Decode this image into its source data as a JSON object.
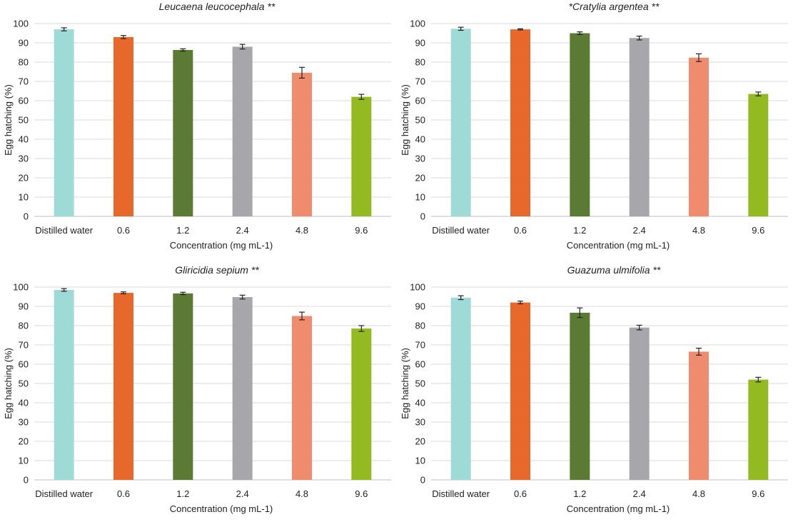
{
  "colors": {
    "Distilled water": "#9fdbd6",
    "0.6": "#e8672a",
    "1.2": "#5b7a33",
    "2.4": "#a7a7ab",
    "4.8": "#f08c6e",
    "9.6": "#93bb21"
  },
  "chart_data": [
    {
      "type": "bar",
      "title": "Leucaena leucocephala **",
      "xlabel": "Concentration (mg mL-1)",
      "ylabel": "Egg hatching (%)",
      "ylim": [
        0,
        100
      ],
      "yticks": [
        0,
        10,
        20,
        30,
        40,
        50,
        60,
        70,
        80,
        90,
        100
      ],
      "grid": true,
      "categories": [
        "Distilled water",
        "0.6",
        "1.2",
        "2.4",
        "4.8",
        "9.6"
      ],
      "values": [
        97,
        93,
        86.3,
        88,
        74.5,
        62
      ],
      "errors": [
        0.8,
        0.8,
        0.6,
        1.2,
        2.8,
        1.3
      ]
    },
    {
      "type": "bar",
      "title": "*Cratylia argentea **",
      "xlabel": "Concentration (mg mL-1)",
      "ylabel": "Egg hatching (%)",
      "ylim": [
        0,
        100
      ],
      "yticks": [
        0,
        10,
        20,
        30,
        40,
        50,
        60,
        70,
        80,
        90,
        100
      ],
      "grid": true,
      "categories": [
        "Distilled water",
        "0.6",
        "1.2",
        "2.4",
        "4.8",
        "9.6"
      ],
      "values": [
        97.3,
        97,
        95,
        92.5,
        82.3,
        63.5
      ],
      "errors": [
        0.8,
        0.3,
        0.7,
        1.0,
        2.0,
        1.0
      ]
    },
    {
      "type": "bar",
      "title": "Gliricidia sepium **",
      "xlabel": "Concentration (mg mL-1)",
      "ylabel": "Egg hatching (%)",
      "ylim": [
        0,
        100
      ],
      "yticks": [
        0,
        10,
        20,
        30,
        40,
        50,
        60,
        70,
        80,
        90,
        100
      ],
      "grid": true,
      "categories": [
        "Distilled water",
        "0.6",
        "1.2",
        "2.4",
        "4.8",
        "9.6"
      ],
      "values": [
        98.5,
        97,
        96.7,
        94.8,
        85,
        78.5
      ],
      "errors": [
        0.7,
        0.5,
        0.6,
        1.0,
        2.0,
        1.5
      ]
    },
    {
      "type": "bar",
      "title": "Guazuma ulmifolia **",
      "xlabel": "Concentration (mg mL-1)",
      "ylabel": "Egg hatching (%)",
      "ylim": [
        0,
        100
      ],
      "yticks": [
        0,
        10,
        20,
        30,
        40,
        50,
        60,
        70,
        80,
        90,
        100
      ],
      "grid": true,
      "categories": [
        "Distilled water",
        "0.6",
        "1.2",
        "2.4",
        "4.8",
        "9.6"
      ],
      "values": [
        94.5,
        92,
        86.7,
        79,
        66.5,
        52
      ],
      "errors": [
        1.0,
        0.7,
        2.5,
        1.2,
        1.8,
        1.2
      ]
    }
  ]
}
